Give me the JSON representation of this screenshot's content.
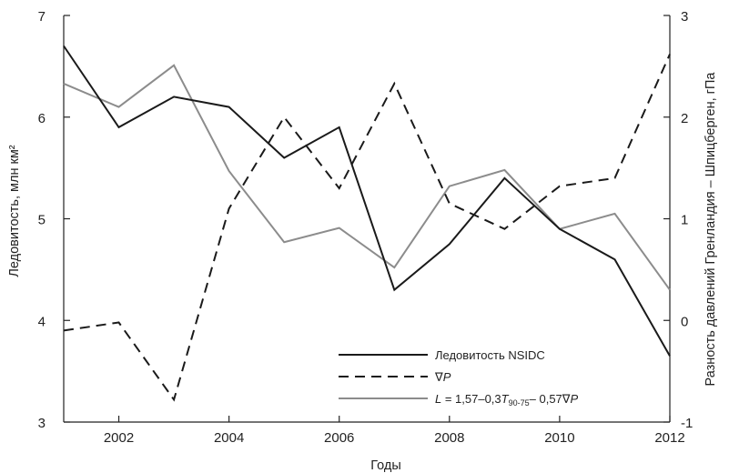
{
  "chart_data": {
    "type": "line",
    "xlabel": "Годы",
    "ylabel_left": "Ледовитость, млн км²",
    "ylabel_right": "Разность давлений Гренландия – Шпицберген, гПа",
    "xlim": [
      2001,
      2012
    ],
    "ylim_left": [
      3,
      7
    ],
    "ylim_right": [
      -1,
      3
    ],
    "x_ticks": [
      "2002",
      "2004",
      "2006",
      "2008",
      "2010",
      "2012"
    ],
    "y_ticks_left": [
      "3",
      "4",
      "5",
      "6",
      "7"
    ],
    "y_ticks_right": [
      "-1",
      "0",
      "1",
      "2",
      "3"
    ],
    "grid": false,
    "legend_position": "bottom-right",
    "legend": {
      "s1": "Ледовитость NSIDC",
      "s2_symbol": "∇",
      "s2_var": "P",
      "s3_L": "L",
      "s3_eq": " = 1,57–0,3",
      "s3_T": "T",
      "s3_sub": "90-75",
      "s3_rest": "– 0,57",
      "s3_nabla": "∇",
      "s3_P": "P"
    },
    "x": [
      2001,
      2002,
      2003,
      2004,
      2005,
      2006,
      2007,
      2008,
      2009,
      2010,
      2011,
      2012
    ],
    "series": [
      {
        "key": "nsidc",
        "axis": "left",
        "color": "#1a1a1a",
        "dash": "solid",
        "values": [
          6.7,
          5.9,
          6.2,
          6.1,
          5.6,
          5.9,
          4.3,
          4.75,
          5.4,
          4.9,
          4.6,
          3.65
        ]
      },
      {
        "key": "dp",
        "axis": "right",
        "color": "#1a1a1a",
        "dash": "dashed",
        "values": [
          -0.1,
          -0.02,
          -0.78,
          1.1,
          2.0,
          1.3,
          2.33,
          1.15,
          0.9,
          1.32,
          1.4,
          2.62
        ]
      },
      {
        "key": "model",
        "axis": "left",
        "color": "#8c8c8c",
        "dash": "solid",
        "values": [
          6.33,
          6.1,
          6.51,
          5.47,
          4.77,
          4.91,
          4.52,
          5.32,
          5.48,
          4.9,
          5.05,
          4.3
        ]
      }
    ]
  }
}
